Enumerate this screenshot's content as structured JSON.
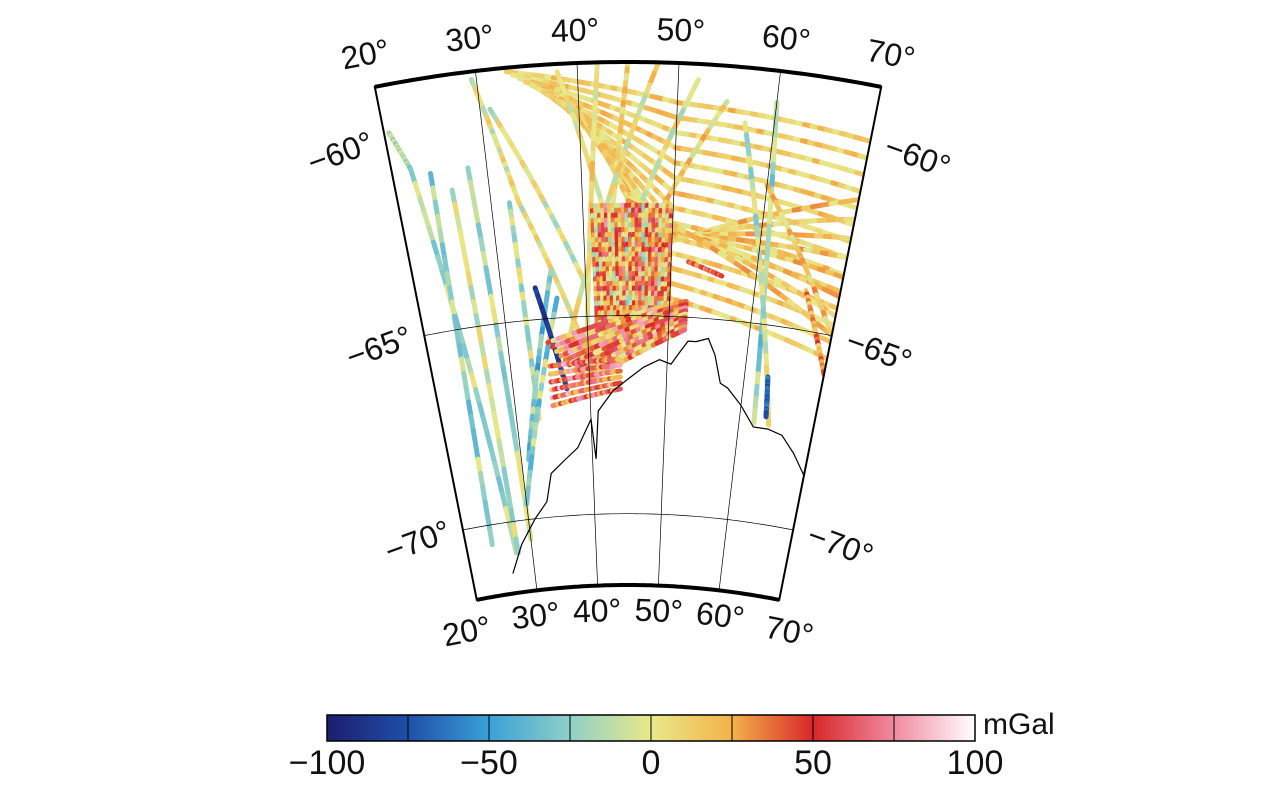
{
  "map": {
    "top_lon_labels": [
      "20°",
      "30°",
      "40°",
      "50°",
      "60°",
      "70°"
    ],
    "bottom_lon_labels": [
      "20°",
      "30°",
      "40°",
      "50°",
      "60°",
      "70°"
    ],
    "left_lat_labels": [
      "−60°",
      "−65°",
      "−70°"
    ],
    "right_lat_labels": [
      "−60°",
      "−65°",
      "−70°"
    ],
    "lon_range": [
      20,
      70
    ],
    "lat_range": [
      -72,
      -58
    ],
    "graticule_lons": [
      30,
      40,
      50,
      60
    ],
    "graticule_lats": [
      -65,
      -70
    ]
  },
  "colorbar": {
    "unit": "mGal",
    "min": -100,
    "max": 100,
    "tick_labels": [
      "−100",
      "−50",
      "0",
      "50",
      "100"
    ],
    "stops": [
      "#1c1e6e",
      "#1f4fa8",
      "#3aa0d8",
      "#8fd0c8",
      "#e9e889",
      "#f3b24a",
      "#d8272a",
      "#f08aa0",
      "#ffffff"
    ]
  }
}
